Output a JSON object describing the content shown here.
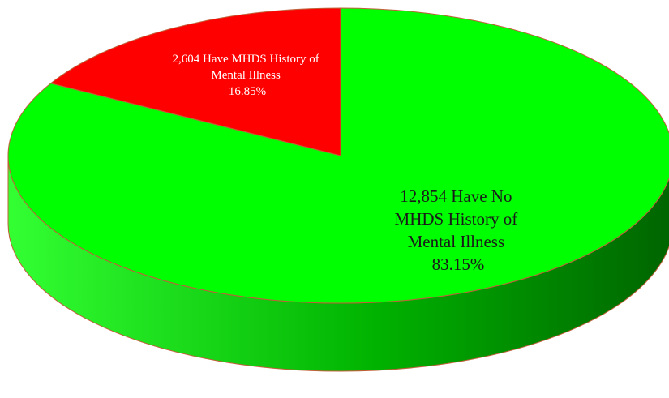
{
  "chart_data": {
    "type": "pie",
    "style": "3d",
    "slices": [
      {
        "label_lines": [
          "12,854 Have      No",
          "MHDS History of",
          "Mental Illness",
          "83.15%"
        ],
        "value": 12854,
        "percent": 83.15,
        "color": "#00ff00",
        "side_color_light": "#33ff33",
        "side_color_dark": "#006400"
      },
      {
        "label_lines": [
          "2,604  Have MHDS History of",
          "Mental Illness",
          "16.85%"
        ],
        "value": 2604,
        "percent": 16.85,
        "color": "#ff0000",
        "side_color_light": "#ff3333",
        "side_color_dark": "#800000"
      }
    ],
    "edge_color": "#c0603a",
    "legend": "none",
    "title": ""
  }
}
